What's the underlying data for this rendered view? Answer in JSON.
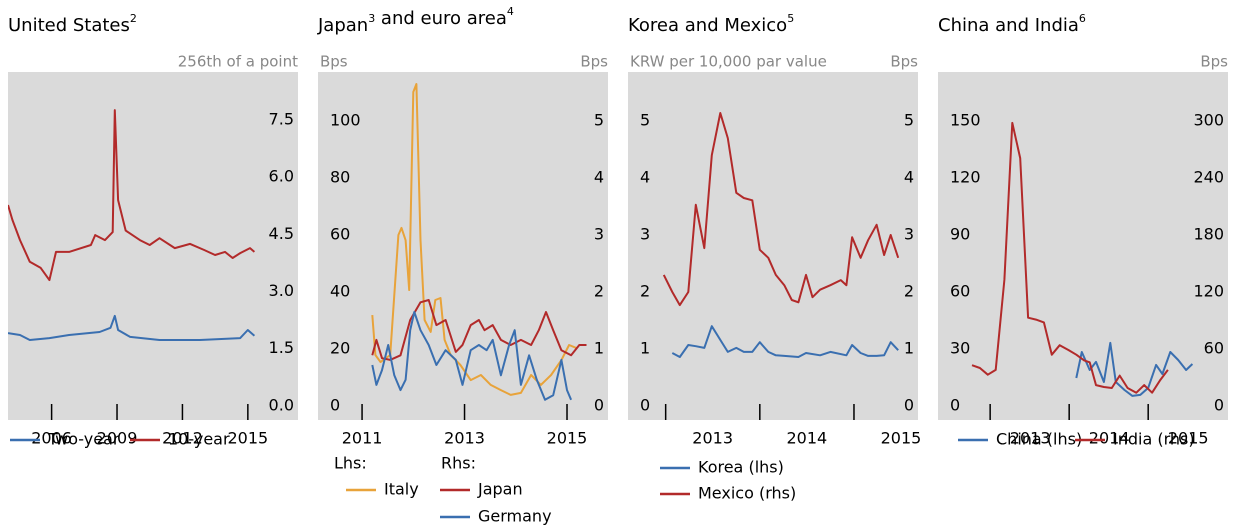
{
  "chart_data": [
    {
      "type": "line",
      "title": [
        {
          "text": "United States",
          "sup": "2"
        }
      ],
      "y_label": "256th of a point",
      "y_axis_side": "right",
      "xlim": [
        2004.0,
        2017.3
      ],
      "xticks": [
        2006,
        2009,
        2012,
        2015
      ],
      "ylim": [
        -0.37,
        8.76
      ],
      "yticks": [
        {
          "value": 0,
          "label": "0.0"
        },
        1.5,
        {
          "value": 3,
          "label": "3.0"
        },
        4.5,
        {
          "value": 6,
          "label": "6.0"
        },
        7.5
      ],
      "series": [
        {
          "name": "Two-year",
          "color": "#3a6fb0",
          "x": [
            2004.0,
            2004.55,
            2005.0,
            2005.9,
            2006.8,
            2008.2,
            2008.7,
            2008.9,
            2009.05,
            2009.6,
            2010.95,
            2012.8,
            2014.65,
            2015.0,
            2015.3
          ],
          "values": [
            1.91,
            1.86,
            1.73,
            1.78,
            1.86,
            1.94,
            2.05,
            2.36,
            1.99,
            1.81,
            1.73,
            1.73,
            1.78,
            1.99,
            1.84
          ]
        },
        {
          "name": "10-year",
          "color": "#b22a2a",
          "x": [
            2004.0,
            2004.2,
            2004.55,
            2005.0,
            2005.5,
            2005.9,
            2006.2,
            2006.8,
            2007.8,
            2008.0,
            2008.45,
            2008.8,
            2008.9,
            2009.05,
            2009.4,
            2010.05,
            2010.5,
            2010.95,
            2011.65,
            2012.35,
            2013.0,
            2013.5,
            2013.95,
            2014.3,
            2014.65,
            2015.1,
            2015.3
          ],
          "values": [
            5.27,
            4.88,
            4.35,
            3.78,
            3.62,
            3.3,
            4.04,
            4.04,
            4.22,
            4.48,
            4.35,
            4.56,
            7.76,
            5.4,
            4.6,
            4.35,
            4.22,
            4.4,
            4.14,
            4.25,
            4.09,
            3.96,
            4.04,
            3.88,
            4.01,
            4.14,
            4.04
          ]
        }
      ]
    },
    {
      "type": "line",
      "title": [
        {
          "text": "Japan",
          "sup": "3"
        },
        {
          "text": " and euro area",
          "sup": "4"
        }
      ],
      "y_label": "Bps",
      "y2_label": "Bps",
      "xlim": [
        2010.14,
        2015.8
      ],
      "xticks": [
        2011,
        2013,
        2015
      ],
      "ylim": [
        -4.9,
        117.2
      ],
      "yticks": [
        0,
        20,
        40,
        60,
        80,
        100
      ],
      "y2lim": [
        -0.245,
        5.86
      ],
      "y2ticks": [
        0,
        1,
        2,
        3,
        4,
        5
      ],
      "legend_headings": [
        "Lhs:",
        "Rhs:"
      ],
      "series": [
        {
          "name": "Italy",
          "color": "#e8a33a",
          "x": [
            2011.2,
            2011.26,
            2011.36,
            2011.55,
            2011.71,
            2011.77,
            2011.85,
            2011.92,
            2012.0,
            2012.06,
            2012.14,
            2012.22,
            2012.34,
            2012.43,
            2012.53,
            2012.61,
            2012.73,
            2012.92,
            2013.12,
            2013.32,
            2013.51,
            2013.71,
            2013.9,
            2014.1,
            2014.3,
            2014.49,
            2014.69,
            2014.89,
            2015.04,
            2015.18
          ],
          "values": [
            31.9,
            17.9,
            15.4,
            17.9,
            60.0,
            62.5,
            58.2,
            40.7,
            110.2,
            113.0,
            58.2,
            30.2,
            26.0,
            37.2,
            37.9,
            23.2,
            17.9,
            14.4,
            9.1,
            10.9,
            7.4,
            5.6,
            3.9,
            4.6,
            10.9,
            7.4,
            10.9,
            16.1,
            21.4,
            20.4
          ]
        },
        {
          "name": "Japan",
          "color": "#b22a2a",
          "axis": "y2",
          "x": [
            2011.2,
            2011.28,
            2011.39,
            2011.55,
            2011.75,
            2011.94,
            2012.14,
            2012.3,
            2012.45,
            2012.63,
            2012.83,
            2012.96,
            2013.12,
            2013.28,
            2013.39,
            2013.55,
            2013.71,
            2013.9,
            2014.1,
            2014.3,
            2014.45,
            2014.59,
            2014.73,
            2014.89,
            2015.08,
            2015.24,
            2015.38
          ],
          "values": [
            0.89,
            1.16,
            0.84,
            0.81,
            0.89,
            1.51,
            1.82,
            1.86,
            1.42,
            1.51,
            0.95,
            1.07,
            1.42,
            1.51,
            1.33,
            1.42,
            1.16,
            1.07,
            1.16,
            1.07,
            1.33,
            1.65,
            1.33,
            0.98,
            0.89,
            1.07,
            1.07
          ]
        },
        {
          "name": "Germany",
          "color": "#3a6fb0",
          "axis": "y2",
          "x": [
            2011.2,
            2011.28,
            2011.39,
            2011.51,
            2011.63,
            2011.75,
            2011.85,
            2011.94,
            2012.02,
            2012.14,
            2012.3,
            2012.45,
            2012.63,
            2012.83,
            2012.96,
            2013.12,
            2013.28,
            2013.43,
            2013.55,
            2013.71,
            2013.87,
            2013.98,
            2014.1,
            2014.26,
            2014.41,
            2014.57,
            2014.73,
            2014.89,
            2015.0,
            2015.08
          ],
          "values": [
            0.72,
            0.37,
            0.63,
            1.07,
            0.54,
            0.28,
            0.46,
            1.33,
            1.65,
            1.33,
            1.07,
            0.72,
            0.98,
            0.81,
            0.37,
            0.98,
            1.07,
            0.98,
            1.16,
            0.54,
            1.07,
            1.33,
            0.37,
            0.89,
            0.46,
            0.11,
            0.19,
            0.81,
            0.28,
            0.11
          ]
        }
      ]
    },
    {
      "type": "line",
      "title": [
        {
          "text": "Korea and Mexico",
          "sup": "5"
        }
      ],
      "y_label": "KRW per 10,000 par value",
      "y2_label": "Bps",
      "xlim": [
        2012.6,
        2015.68
      ],
      "xticks": [
        2013,
        2014,
        2015
      ],
      "ylim": [
        -0.245,
        5.86
      ],
      "yticks": [
        0,
        1,
        2,
        3,
        4,
        5
      ],
      "y2lim": [
        -0.245,
        5.86
      ],
      "y2ticks": [
        0,
        1,
        2,
        3,
        4,
        5
      ],
      "series": [
        {
          "name": "Korea (lhs)",
          "color": "#3a6fb0",
          "x": [
            2013.07,
            2013.15,
            2013.24,
            2013.32,
            2013.41,
            2013.49,
            2013.58,
            2013.66,
            2013.75,
            2013.83,
            2013.92,
            2014.0,
            2014.09,
            2014.17,
            2014.26,
            2014.41,
            2014.49,
            2014.64,
            2014.75,
            2014.92,
            2014.98,
            2015.07,
            2015.15,
            2015.24,
            2015.32,
            2015.39,
            2015.47
          ],
          "values": [
            0.93,
            0.86,
            1.07,
            1.05,
            1.02,
            1.4,
            1.16,
            0.95,
            1.02,
            0.95,
            0.95,
            1.12,
            0.95,
            0.89,
            0.88,
            0.86,
            0.93,
            0.89,
            0.95,
            0.89,
            1.07,
            0.93,
            0.88,
            0.88,
            0.89,
            1.12,
            0.98
          ]
        },
        {
          "name": "Mexico (rhs)",
          "color": "#b22a2a",
          "axis": "y2",
          "x": [
            2012.98,
            2013.07,
            2013.15,
            2013.24,
            2013.32,
            2013.41,
            2013.49,
            2013.58,
            2013.66,
            2013.75,
            2013.83,
            2013.92,
            2014.0,
            2014.09,
            2014.17,
            2014.26,
            2014.34,
            2014.41,
            2014.49,
            2014.56,
            2014.64,
            2014.75,
            2014.86,
            2014.92,
            2014.98,
            2015.07,
            2015.15,
            2015.24,
            2015.32,
            2015.39,
            2015.47
          ],
          "values": [
            2.3,
            2.0,
            1.77,
            2.0,
            3.53,
            2.77,
            4.4,
            5.14,
            4.7,
            3.74,
            3.65,
            3.61,
            2.74,
            2.6,
            2.3,
            2.12,
            1.86,
            1.82,
            2.3,
            1.91,
            2.04,
            2.12,
            2.21,
            2.12,
            2.96,
            2.6,
            2.91,
            3.18,
            2.65,
            3.0,
            2.6
          ]
        }
      ]
    },
    {
      "type": "line",
      "title": [
        {
          "text": "China and India",
          "sup": "6"
        }
      ],
      "y2_label": "Bps",
      "xlim": [
        2012.34,
        2016.01
      ],
      "xticks": [
        2013,
        2014,
        2015
      ],
      "ylim": [
        -7.4,
        175.8
      ],
      "yticks": [
        0,
        30,
        60,
        90,
        120,
        150
      ],
      "y2lim": [
        -14.7,
        351.6
      ],
      "y2ticks": [
        0,
        60,
        120,
        180,
        240,
        300
      ],
      "series": [
        {
          "name": "China (lhs)",
          "color": "#3a6fb0",
          "x": [
            2014.09,
            2014.16,
            2014.26,
            2014.34,
            2014.44,
            2014.52,
            2014.59,
            2014.7,
            2014.8,
            2014.9,
            2015.0,
            2015.1,
            2015.18,
            2015.28,
            2015.38,
            2015.48,
            2015.56
          ],
          "values": [
            14.7,
            28.4,
            18.9,
            23.2,
            12.6,
            33.2,
            12.6,
            8.4,
            5.3,
            5.8,
            9.5,
            21.6,
            16.8,
            28.4,
            24.2,
            18.9,
            22.1
          ]
        },
        {
          "name": "India (rhs)",
          "color": "#b22a2a",
          "axis": "y2",
          "x": [
            2012.77,
            2012.87,
            2012.97,
            2013.07,
            2013.18,
            2013.28,
            2013.38,
            2013.48,
            2013.58,
            2013.68,
            2013.78,
            2013.88,
            2013.99,
            2014.09,
            2014.19,
            2014.26,
            2014.34,
            2014.44,
            2014.54,
            2014.64,
            2014.74,
            2014.85,
            2014.95,
            2015.05,
            2015.15,
            2015.25
          ],
          "values": [
            43,
            40,
            33,
            38,
            133,
            298,
            261,
            93,
            91,
            88,
            54,
            64,
            59,
            54,
            48,
            46,
            22,
            20,
            19,
            32,
            19,
            14,
            22,
            14,
            27,
            38
          ]
        }
      ]
    }
  ]
}
